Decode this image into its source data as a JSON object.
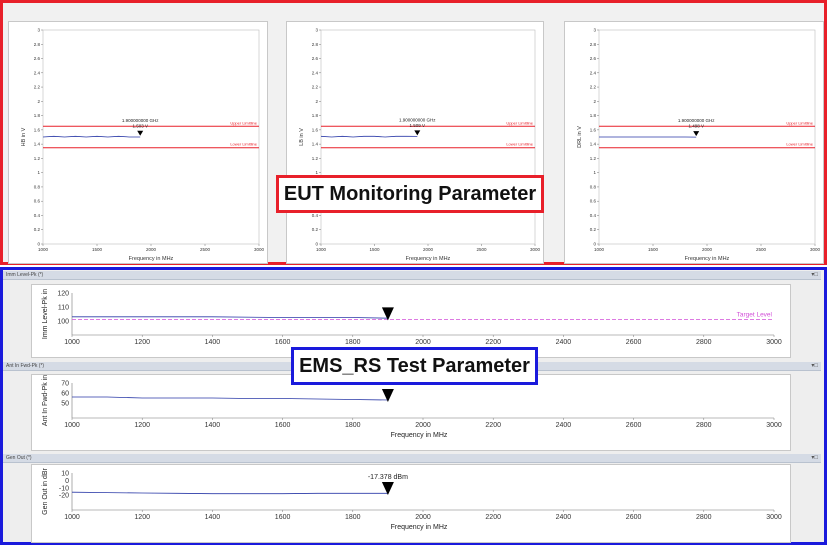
{
  "eut_section": {
    "title": "EUT Monitoring Parameter",
    "charts": [
      {
        "ylabel": "HB in V",
        "marker_freq": "1.900000000 GHz",
        "marker_value": "1.503 V"
      },
      {
        "ylabel": "LB in V",
        "marker_freq": "1.900000000 GHz",
        "marker_value": "1.509 V"
      },
      {
        "ylabel": "DRL in V",
        "marker_freq": "1.900000000 GHz",
        "marker_value": "1.498 V"
      }
    ],
    "xlabel": "Frequency in MHz",
    "upper_label": "Upper Limitline",
    "lower_label": "Lower Limitline",
    "accent_color": "#e8202a"
  },
  "ems_section": {
    "title": "EMS_RS Test Parameter",
    "xlabel": "Frequency in MHz",
    "accent_color": "#1a1adc",
    "panels": [
      {
        "bar_title": "Imm Level-Pk (*)",
        "ylabel": "Imm Level-Pk in",
        "target_label": "Target Level",
        "readout": ""
      },
      {
        "bar_title": "Ant In Fwd-Pk (*)",
        "ylabel": "Ant In Fwd-Pk in",
        "target_label": "",
        "readout": ""
      },
      {
        "bar_title": "Gen Out (*)",
        "ylabel": "Gen Out in dBr",
        "target_label": "",
        "readout": "-17.378 dBm"
      }
    ]
  },
  "chart_data": [
    {
      "type": "line",
      "title": "",
      "ylabel": "HB in V",
      "xlabel": "Frequency in MHz",
      "xlim": [
        1000,
        3000
      ],
      "ylim": [
        0,
        3
      ],
      "x_ticks": [
        1000,
        1500,
        2000,
        2500,
        3000
      ],
      "y_ticks": [
        0,
        0.2,
        0.4,
        0.6,
        0.8,
        1,
        1.2,
        1.4,
        1.6,
        1.8,
        2,
        2.2,
        2.4,
        2.6,
        2.8,
        3
      ],
      "limits": {
        "upper": 1.65,
        "lower": 1.35
      },
      "series": [
        {
          "x": [
            1000,
            1100,
            1200,
            1300,
            1400,
            1500,
            1600,
            1700,
            1800,
            1900
          ],
          "y": [
            1.5,
            1.51,
            1.5,
            1.51,
            1.5,
            1.51,
            1.5,
            1.51,
            1.5,
            1.5
          ]
        }
      ],
      "marker": {
        "x": 1900,
        "y": 1.503
      }
    },
    {
      "type": "line",
      "title": "",
      "ylabel": "LB in V",
      "xlabel": "Frequency in MHz",
      "xlim": [
        1000,
        3000
      ],
      "ylim": [
        0,
        3
      ],
      "x_ticks": [
        1000,
        1500,
        2000,
        2500,
        3000
      ],
      "y_ticks": [
        0,
        0.2,
        0.4,
        0.6,
        0.8,
        1,
        1.2,
        1.4,
        1.6,
        1.8,
        2,
        2.2,
        2.4,
        2.6,
        2.8,
        3
      ],
      "limits": {
        "upper": 1.65,
        "lower": 1.35
      },
      "series": [
        {
          "x": [
            1000,
            1100,
            1200,
            1300,
            1400,
            1500,
            1600,
            1700,
            1800,
            1900
          ],
          "y": [
            1.51,
            1.5,
            1.51,
            1.5,
            1.51,
            1.51,
            1.5,
            1.51,
            1.51,
            1.509
          ]
        }
      ],
      "marker": {
        "x": 1900,
        "y": 1.509
      }
    },
    {
      "type": "line",
      "title": "",
      "ylabel": "DRL in V",
      "xlabel": "Frequency in MHz",
      "xlim": [
        1000,
        3000
      ],
      "ylim": [
        0,
        3
      ],
      "x_ticks": [
        1000,
        1500,
        2000,
        2500,
        3000
      ],
      "y_ticks": [
        0,
        0.2,
        0.4,
        0.6,
        0.8,
        1,
        1.2,
        1.4,
        1.6,
        1.8,
        2,
        2.2,
        2.4,
        2.6,
        2.8,
        3
      ],
      "limits": {
        "upper": 1.65,
        "lower": 1.35
      },
      "series": [
        {
          "x": [
            1000,
            1100,
            1200,
            1300,
            1400,
            1500,
            1600,
            1700,
            1800,
            1900
          ],
          "y": [
            1.5,
            1.5,
            1.5,
            1.5,
            1.5,
            1.5,
            1.5,
            1.5,
            1.5,
            1.498
          ]
        }
      ],
      "marker": {
        "x": 1900,
        "y": 1.498
      }
    },
    {
      "type": "line",
      "title": "",
      "ylabel": "Imm Level-Pk in",
      "xlabel": "",
      "xlim": [
        1000,
        3000
      ],
      "ylim": [
        90,
        120
      ],
      "x_ticks": [
        1000,
        1200,
        1400,
        1600,
        1800,
        2000,
        2200,
        2400,
        2600,
        2800,
        3000
      ],
      "y_ticks": [
        100,
        110,
        120
      ],
      "target": 101,
      "series": [
        {
          "x": [
            1000,
            1200,
            1400,
            1600,
            1800,
            1900
          ],
          "y": [
            103,
            103,
            103,
            102.5,
            102.5,
            102
          ]
        }
      ],
      "marker": {
        "x": 1900,
        "y": 104
      }
    },
    {
      "type": "line",
      "title": "",
      "ylabel": "Ant In Fwd-Pk in",
      "xlabel": "Frequency in MHz",
      "xlim": [
        1000,
        3000
      ],
      "ylim": [
        35,
        70
      ],
      "x_ticks": [
        1000,
        1200,
        1400,
        1600,
        1800,
        2000,
        2200,
        2400,
        2600,
        2800,
        3000
      ],
      "y_ticks": [
        50,
        60,
        70
      ],
      "series": [
        {
          "x": [
            1000,
            1100,
            1200,
            1300,
            1400,
            1500,
            1600,
            1700,
            1800,
            1900
          ],
          "y": [
            56,
            56,
            55,
            55,
            55,
            54.5,
            54.5,
            54,
            53.5,
            53
          ]
        }
      ],
      "marker": {
        "x": 1900,
        "y": 56
      }
    },
    {
      "type": "line",
      "title": "",
      "ylabel": "Gen Out in dBr",
      "xlabel": "Frequency in MHz",
      "xlim": [
        1000,
        3000
      ],
      "ylim": [
        -40,
        10
      ],
      "x_ticks": [
        1000,
        1200,
        1400,
        1600,
        1800,
        2000,
        2200,
        2400,
        2600,
        2800,
        3000
      ],
      "y_ticks": [
        -20,
        -10,
        0,
        10
      ],
      "series": [
        {
          "x": [
            1000,
            1100,
            1200,
            1300,
            1400,
            1500,
            1600,
            1700,
            1800,
            1900
          ],
          "y": [
            -16,
            -16.5,
            -17,
            -17.5,
            -18,
            -18,
            -18,
            -17.5,
            -17.5,
            -17.378
          ]
        }
      ],
      "marker": {
        "x": 1900,
        "y": -13
      }
    }
  ]
}
